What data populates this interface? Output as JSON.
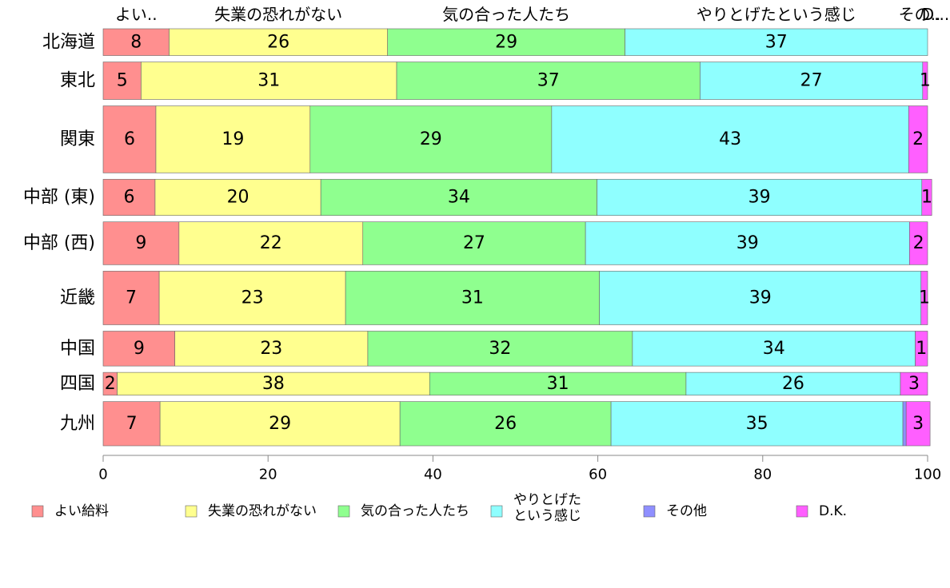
{
  "chart_data": {
    "type": "bar",
    "orientation": "horizontal",
    "stacked": true,
    "categories": [
      "北海道",
      "東北",
      "関東",
      "中部 (東)",
      "中部 (西)",
      "近畿",
      "中国",
      "四国",
      "九州"
    ],
    "row_weights": [
      1.0,
      1.4,
      2.5,
      1.35,
      1.6,
      2.0,
      1.3,
      0.85,
      1.65
    ],
    "series": [
      {
        "name": "よい給料",
        "color": "#ff8f8f",
        "values": [
          8,
          4.6,
          6.4,
          6.3,
          9.2,
          6.8,
          8.7,
          1.7,
          6.9
        ],
        "labels": [
          "8",
          "5",
          "6",
          "6",
          "9",
          "7",
          "9",
          "2",
          "7"
        ]
      },
      {
        "name": "失業の恐れがない",
        "color": "#ffff8f",
        "values": [
          26.5,
          31,
          18.7,
          20.1,
          22.3,
          22.6,
          23.4,
          37.9,
          29.1
        ],
        "labels": [
          "26",
          "31",
          "19",
          "20",
          "22",
          "23",
          "23",
          "38",
          "29"
        ]
      },
      {
        "name": "気の合った人たち",
        "color": "#8fff8f",
        "values": [
          28.8,
          36.8,
          29.3,
          33.5,
          27,
          30.8,
          32.1,
          31.1,
          25.6
        ],
        "labels": [
          "29",
          "37",
          "29",
          "34",
          "27",
          "31",
          "32",
          "31",
          "26"
        ]
      },
      {
        "name": "やりとげた\nという感じ",
        "color": "#8fffff",
        "values": [
          36.7,
          27,
          43.3,
          39.4,
          39.3,
          39,
          34.3,
          26,
          35.4
        ],
        "labels": [
          "37",
          "27",
          "43",
          "39",
          "39",
          "39",
          "34",
          "26",
          "35"
        ]
      },
      {
        "name": "その他",
        "color": "#8f8fff",
        "values": [
          0,
          0,
          0,
          0,
          0,
          0,
          0,
          0,
          0.4
        ],
        "labels": [
          "",
          "",
          "",
          "",
          "",
          "",
          "",
          "",
          ""
        ]
      },
      {
        "name": "D.K.",
        "color": "#ff5fff",
        "values": [
          0,
          0.6,
          2.3,
          1.2,
          2.2,
          0.8,
          1.5,
          3.3,
          2.9
        ],
        "labels": [
          "",
          "1",
          "2",
          "1",
          "2",
          "1",
          "1",
          "3",
          "3"
        ]
      }
    ],
    "top_labels": [
      "よい..",
      "失業の恐れがない",
      "気の合った人たち",
      "やりとげたという感じ",
      "その..",
      "D..."
    ],
    "xlim": [
      0,
      100
    ],
    "xticks": [
      0,
      20,
      40,
      60,
      80,
      100
    ],
    "grid": false,
    "legend_position": "bottom"
  }
}
